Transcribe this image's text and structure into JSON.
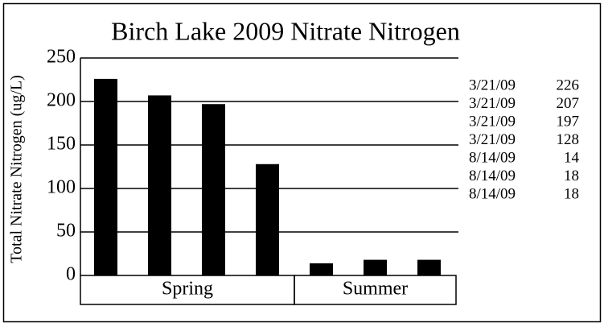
{
  "chart_data": {
    "type": "bar",
    "title": "Birch Lake 2009 Nitrate Nitrogen",
    "y_label": "Total Nitrate Nitrogen (ug/L)",
    "categories": [
      "3/21/09",
      "3/21/09",
      "3/21/09",
      "3/21/09",
      "8/14/09",
      "8/14/09",
      "8/14/09"
    ],
    "groups": [
      "Spring",
      "Spring",
      "Spring",
      "Spring",
      "Summer",
      "Summer",
      "Summer"
    ],
    "values": [
      226,
      207,
      197,
      128,
      14,
      18,
      18
    ],
    "color": "#000000",
    "ylim": [
      0,
      250
    ],
    "yticks": [
      0,
      50,
      100,
      150,
      200,
      250
    ],
    "grid": true
  }
}
